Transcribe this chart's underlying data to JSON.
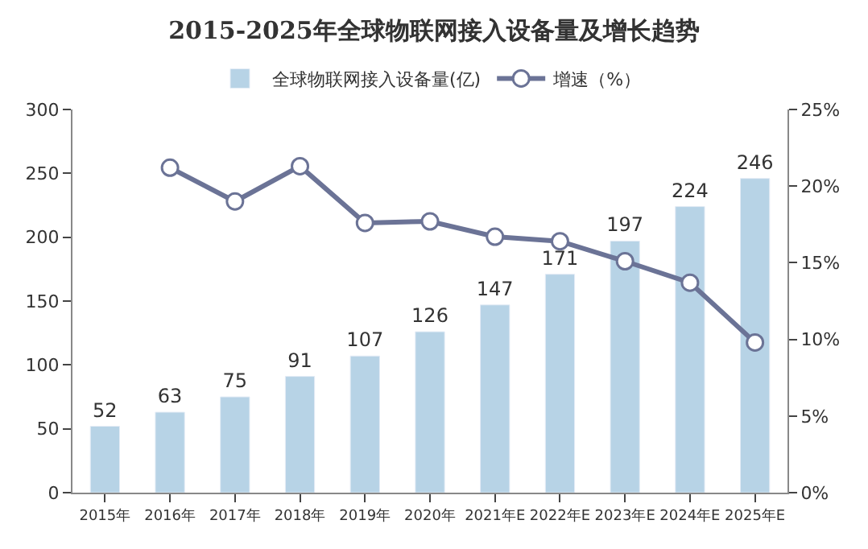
{
  "chart_data": {
    "type": "bar",
    "title": "2015-2025年全球物联网接入设备量及增长趋势",
    "categories": [
      "2015年",
      "2016年",
      "2017年",
      "2018年",
      "2019年",
      "2020年",
      "2021年E",
      "2022年E",
      "2023年E",
      "2024年E",
      "2025年E"
    ],
    "series": [
      {
        "name": "全球物联网接入设备量(亿)",
        "color": "#b7d3e6",
        "values": [
          52,
          63,
          75,
          91,
          107,
          126,
          147,
          171,
          197,
          224,
          246
        ],
        "data_labels": true
      },
      {
        "name": "增速（%）",
        "type": "line",
        "axis": "y2",
        "color": "#6b7396",
        "marker": "circle",
        "values": [
          null,
          21.2,
          19.0,
          21.3,
          17.6,
          17.7,
          16.7,
          16.4,
          15.1,
          13.7,
          9.8
        ]
      }
    ],
    "ylim": [
      0,
      300
    ],
    "yticks": [
      0,
      50,
      100,
      150,
      200,
      250,
      300
    ],
    "y2lim": [
      0,
      25
    ],
    "y2ticks": [
      {
        "value": 0,
        "label": "0%"
      },
      {
        "value": 5,
        "label": "5%"
      },
      {
        "value": 10,
        "label": "10%"
      },
      {
        "value": 15,
        "label": "15%"
      },
      {
        "value": 20,
        "label": "20%"
      },
      {
        "value": 25,
        "label": "25%"
      }
    ],
    "legend": "top"
  }
}
